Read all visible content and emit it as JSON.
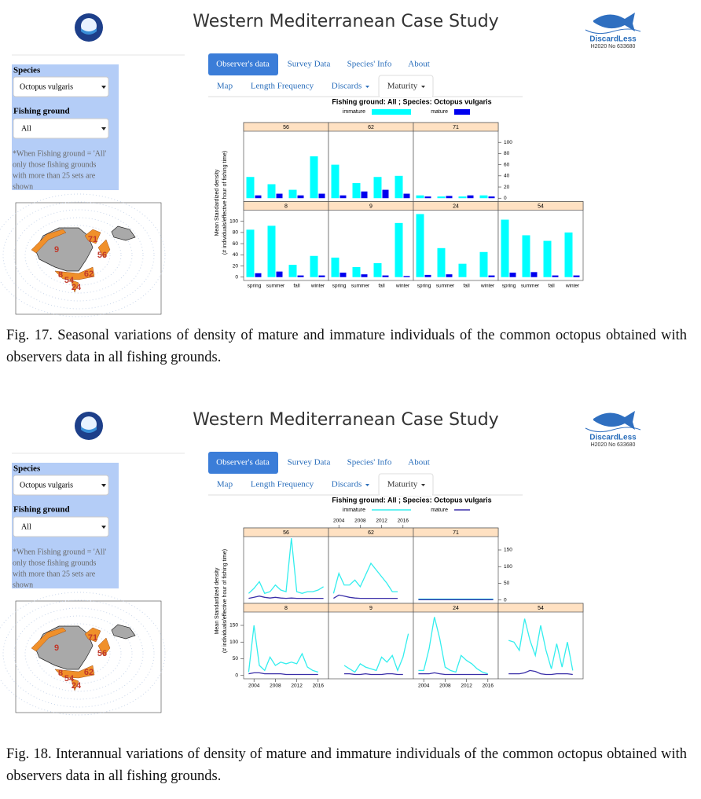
{
  "figures": [
    {
      "app": {
        "title": "Western Mediterranean Case Study",
        "logo_text": "DiscardLess",
        "logo_sub": "H2020 No 633680",
        "species_label": "Species",
        "species_value": "Octopus vulgaris",
        "ground_label": "Fishing ground",
        "ground_value": "All",
        "note": [
          "*When Fishing ground = 'All'",
          "only those fishing grounds",
          "with more than 25 sets are",
          "shown"
        ],
        "tabs": [
          "Observer's data",
          "Survey Data",
          "Species' Info",
          "About"
        ],
        "subtabs": [
          "Map",
          "Length Frequency",
          "Discards",
          "Maturity"
        ],
        "map_labels": [
          "9",
          "71",
          "56",
          "8",
          "54",
          "62",
          "24"
        ]
      },
      "caption": "Fig. 17. Seasonal variations of density of mature and immature individuals of the common octopus obtained with observers data in all fishing grounds."
    },
    {
      "app": {
        "title": "Western Mediterranean Case Study",
        "logo_text": "DiscardLess",
        "logo_sub": "H2020 No 633680",
        "species_label": "Species",
        "species_value": "Octopus vulgaris",
        "ground_label": "Fishing ground",
        "ground_value": "All",
        "note": [
          "*When Fishing ground = 'All'",
          "only those fishing grounds",
          "with more than 25 sets are",
          "shown"
        ],
        "tabs": [
          "Observer's data",
          "Survey Data",
          "Species' Info",
          "About"
        ],
        "subtabs": [
          "Map",
          "Length Frequency",
          "Discards",
          "Maturity"
        ],
        "map_labels": [
          "9",
          "71",
          "56",
          "8",
          "54",
          "62",
          "24"
        ]
      },
      "caption": "Fig. 18. Interannual variations of density of mature and immature individuals of the common octopus obtained with observers data in all fishing grounds."
    }
  ],
  "chart_data": [
    {
      "type": "bar",
      "title": "Fishing ground: All ; Species: Octopus vulgaris",
      "ylabel": [
        "Mean Standardized density",
        "(# individuals/effective hour of fishing time)"
      ],
      "categories": [
        "spring",
        "summer",
        "fall",
        "winter"
      ],
      "series": [
        {
          "name": "immature",
          "color": "#00ffff"
        },
        {
          "name": "mature",
          "color": "#0000ee"
        }
      ],
      "ylim": [
        -6,
        120
      ],
      "yticks": [
        0,
        20,
        40,
        60,
        80,
        100
      ],
      "panels": [
        {
          "name": "56",
          "series": [
            {
              "values": [
                38,
                25,
                15,
                75
              ]
            },
            {
              "values": [
                5,
                8,
                5,
                8
              ]
            }
          ]
        },
        {
          "name": "62",
          "series": [
            {
              "values": [
                60,
                27,
                38,
                40
              ]
            },
            {
              "values": [
                5,
                12,
                15,
                8
              ]
            }
          ]
        },
        {
          "name": "71",
          "series": [
            {
              "values": [
                5,
                3,
                3,
                5
              ]
            },
            {
              "values": [
                3,
                4,
                5,
                3
              ]
            }
          ]
        },
        {
          "name": "8",
          "series": [
            {
              "values": [
                85,
                92,
                22,
                38
              ]
            },
            {
              "values": [
                7,
                10,
                3,
                3
              ]
            }
          ]
        },
        {
          "name": "9",
          "series": [
            {
              "values": [
                35,
                18,
                25,
                97
              ]
            },
            {
              "values": [
                8,
                5,
                3,
                2
              ]
            }
          ]
        },
        {
          "name": "24",
          "series": [
            {
              "values": [
                113,
                52,
                24,
                45
              ]
            },
            {
              "values": [
                4,
                5,
                0,
                3
              ]
            }
          ]
        },
        {
          "name": "54",
          "series": [
            {
              "values": [
                103,
                75,
                65,
                80
              ]
            },
            {
              "values": [
                8,
                9,
                3,
                3
              ]
            }
          ]
        }
      ]
    },
    {
      "type": "line",
      "title": "Fishing ground: All ; Species: Octopus vulgaris",
      "ylabel": [
        "Mean Standardized density",
        "(# individuals/effective hour of fishing time)"
      ],
      "series": [
        {
          "name": "immature",
          "color": "#33eeee"
        },
        {
          "name": "mature",
          "color": "#3a2fa8"
        }
      ],
      "x": [
        2003,
        2004,
        2005,
        2006,
        2007,
        2008,
        2009,
        2010,
        2011,
        2012,
        2013,
        2014,
        2015,
        2016,
        2017
      ],
      "xlim": [
        2002.5,
        2017.5
      ],
      "xticks": [
        2004,
        2008,
        2012,
        2016
      ],
      "ylim": [
        -10,
        190
      ],
      "yticks": [
        0,
        50,
        100,
        150
      ],
      "panels": [
        {
          "name": "56",
          "series": [
            {
              "values": [
                20,
                35,
                55,
                20,
                25,
                45,
                30,
                25,
                185,
                25,
                20,
                25,
                25,
                30,
                40
              ]
            },
            {
              "values": [
                5,
                8,
                12,
                8,
                6,
                8,
                6,
                5,
                6,
                5,
                5,
                5,
                5,
                5,
                5
              ]
            }
          ]
        },
        {
          "name": "62",
          "series": [
            {
              "values": [
                20,
                80,
                45,
                45,
                60,
                40,
                75,
                110,
                90,
                70,
                50,
                25,
                25,
                null,
                null
              ]
            },
            {
              "values": [
                5,
                15,
                12,
                8,
                6,
                5,
                5,
                5,
                5,
                5,
                5,
                5,
                5,
                null,
                null
              ]
            }
          ]
        },
        {
          "name": "71",
          "series": [
            {
              "values": [
                3,
                3,
                3,
                3,
                3,
                3,
                3,
                3,
                3,
                3,
                3,
                3,
                3,
                3,
                3
              ]
            },
            {
              "values": [
                1,
                1,
                1,
                1,
                1,
                1,
                1,
                1,
                1,
                1,
                1,
                1,
                1,
                1,
                1
              ]
            }
          ]
        },
        {
          "name": "8",
          "series": [
            {
              "values": [
                10,
                150,
                30,
                15,
                55,
                30,
                40,
                35,
                40,
                35,
                65,
                25,
                15,
                10,
                null
              ]
            },
            {
              "values": [
                5,
                8,
                8,
                5,
                5,
                5,
                5,
                3,
                3,
                3,
                3,
                3,
                3,
                3,
                null
              ]
            }
          ]
        },
        {
          "name": "9",
          "series": [
            {
              "values": [
                null,
                null,
                30,
                20,
                10,
                35,
                25,
                20,
                15,
                55,
                40,
                60,
                15,
                55,
                125
              ]
            },
            {
              "values": [
                null,
                null,
                5,
                5,
                3,
                3,
                5,
                3,
                3,
                3,
                5,
                5,
                3,
                3,
                null
              ]
            }
          ]
        },
        {
          "name": "24",
          "series": [
            {
              "values": [
                15,
                15,
                80,
                175,
                110,
                25,
                15,
                10,
                60,
                45,
                35,
                20,
                10,
                5,
                null
              ]
            },
            {
              "values": [
                5,
                5,
                5,
                8,
                5,
                3,
                3,
                3,
                3,
                3,
                3,
                3,
                3,
                3,
                null
              ]
            }
          ]
        },
        {
          "name": "54",
          "series": [
            {
              "values": [
                null,
                105,
                100,
                75,
                170,
                105,
                60,
                150,
                75,
                20,
                95,
                25,
                100,
                15,
                null
              ]
            },
            {
              "values": [
                null,
                5,
                5,
                5,
                8,
                15,
                12,
                5,
                3,
                3,
                5,
                5,
                5,
                3,
                null
              ]
            }
          ]
        }
      ]
    }
  ]
}
